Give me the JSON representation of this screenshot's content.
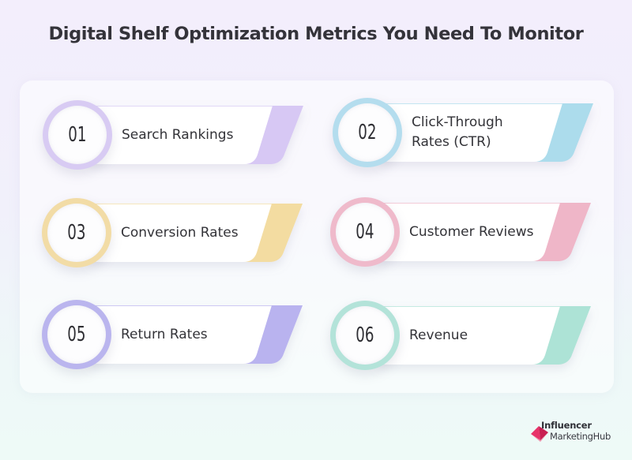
{
  "title": "Digital Shelf Optimization Metrics You Need To Monitor",
  "metrics": [
    {
      "number": "01",
      "label": "Search Rankings",
      "color": "#d7c8f4",
      "ring": "#d8cbf3"
    },
    {
      "number": "02",
      "label": "Click-Through\nRates (CTR)",
      "color": "#acdcec",
      "ring": "#b4ddee"
    },
    {
      "number": "03",
      "label": "Conversion Rates",
      "color": "#f3dca1",
      "ring": "#f2dca6"
    },
    {
      "number": "04",
      "label": "Customer Reviews",
      "color": "#efb6c8",
      "ring": "#efbacb"
    },
    {
      "number": "05",
      "label": "Return Rates",
      "color": "#b9b3ef",
      "ring": "#bab5ee"
    },
    {
      "number": "06",
      "label": "Revenue",
      "color": "#ade3d6",
      "ring": "#b3e3d9"
    }
  ],
  "logo": {
    "line1": "Influencer",
    "line2": "MarketingHub",
    "icon": "influencer-marketing-hub-logo-icon",
    "color": "#e23c6a"
  }
}
